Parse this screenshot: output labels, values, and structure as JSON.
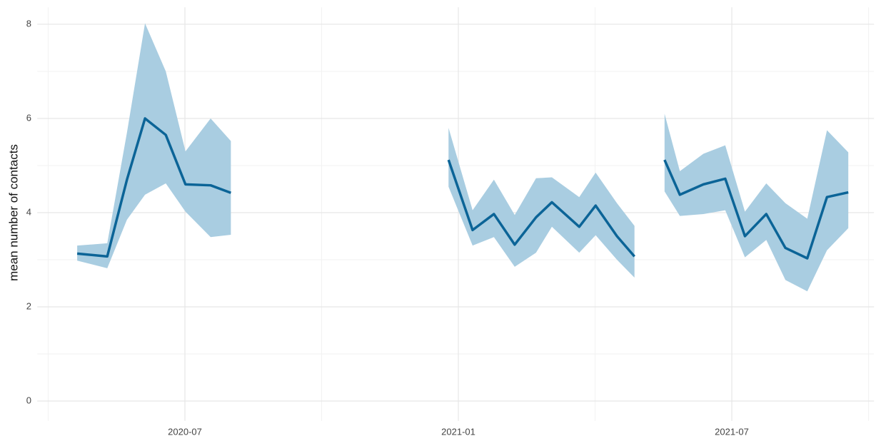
{
  "chart_data": {
    "type": "line",
    "y_label": "mean number of contacts",
    "x": [
      2020.303,
      2020.358,
      2020.394,
      2020.427,
      2020.465,
      2020.501,
      2020.547,
      2020.584,
      null,
      2020.982,
      2021.026,
      2021.065,
      2021.103,
      2021.142,
      2021.171,
      2021.221,
      2021.251,
      2021.29,
      2021.322,
      null,
      2021.377,
      2021.405,
      2021.448,
      2021.488,
      2021.524,
      2021.563,
      2021.598,
      2021.638,
      2021.674,
      2021.713
    ],
    "series": [
      {
        "line_color": "#0b6497",
        "band_color": "#a9cde1",
        "values": [
          3.13,
          3.07,
          4.7,
          6.0,
          5.65,
          4.6,
          4.58,
          4.42,
          null,
          5.12,
          3.63,
          3.97,
          3.32,
          3.9,
          4.22,
          3.7,
          4.15,
          3.5,
          3.07,
          null,
          5.12,
          4.38,
          4.6,
          4.72,
          3.5,
          3.97,
          3.25,
          3.03,
          4.33,
          4.43
        ],
        "lower": [
          2.98,
          2.82,
          3.85,
          4.38,
          4.62,
          4.02,
          3.48,
          3.53,
          null,
          4.55,
          3.3,
          3.48,
          2.85,
          3.15,
          3.7,
          3.15,
          3.52,
          3.0,
          2.62,
          null,
          4.45,
          3.93,
          3.97,
          4.05,
          3.05,
          3.42,
          2.57,
          2.33,
          3.2,
          3.67
        ],
        "upper": [
          3.3,
          3.35,
          5.7,
          8.02,
          7.0,
          5.3,
          6.0,
          5.52,
          null,
          5.8,
          4.05,
          4.7,
          3.95,
          4.73,
          4.75,
          4.33,
          4.85,
          4.2,
          3.72,
          null,
          6.1,
          4.88,
          5.25,
          5.43,
          4.02,
          4.62,
          4.2,
          3.87,
          5.75,
          5.28
        ]
      }
    ],
    "xlim": [
      2020.23,
      2021.76
    ],
    "xticks": [
      {
        "value": 2020.5,
        "label": "2020-07"
      },
      {
        "value": 2021.0,
        "label": "2021-01"
      },
      {
        "value": 2021.5,
        "label": "2021-07"
      }
    ],
    "xminor_ticks": [
      2020.25,
      2020.75,
      2021.25,
      2021.75
    ],
    "ylim": [
      -0.42,
      8.36
    ],
    "yticks": [
      0,
      2,
      4,
      6,
      8
    ],
    "yminor_ticks": [
      1,
      3,
      5,
      7
    ],
    "grid": true
  }
}
